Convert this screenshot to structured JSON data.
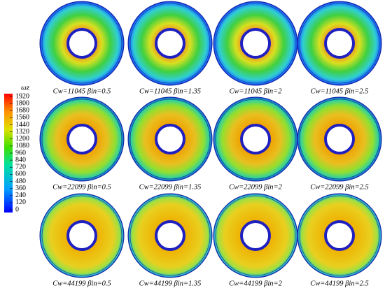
{
  "colorbar": {
    "title": "ωz",
    "lim": [
      0,
      1920
    ],
    "ticks": [
      0,
      120,
      240,
      360,
      480,
      600,
      720,
      840,
      960,
      1080,
      1200,
      1320,
      1440,
      1560,
      1680,
      1800,
      1920
    ]
  },
  "panels": [
    {
      "caption": "Cw=11045 βin=0.5"
    },
    {
      "caption": "Cw=11045 βin=1.35"
    },
    {
      "caption": "Cw=11045 βin=2"
    },
    {
      "caption": "Cw=11045 βin=2.5"
    },
    {
      "caption": "Cw=22099 βin=0.5"
    },
    {
      "caption": "Cw=22099 βin=1.35"
    },
    {
      "caption": "Cw=22099 βin=2"
    },
    {
      "caption": "Cw=22099 βin=2.5"
    },
    {
      "caption": "Cw=44199 βin=0.5"
    },
    {
      "caption": "Cw=44199 βin=1.35"
    },
    {
      "caption": "Cw=44199 βin=2"
    },
    {
      "caption": "Cw=44199 βin=2.5"
    }
  ]
}
